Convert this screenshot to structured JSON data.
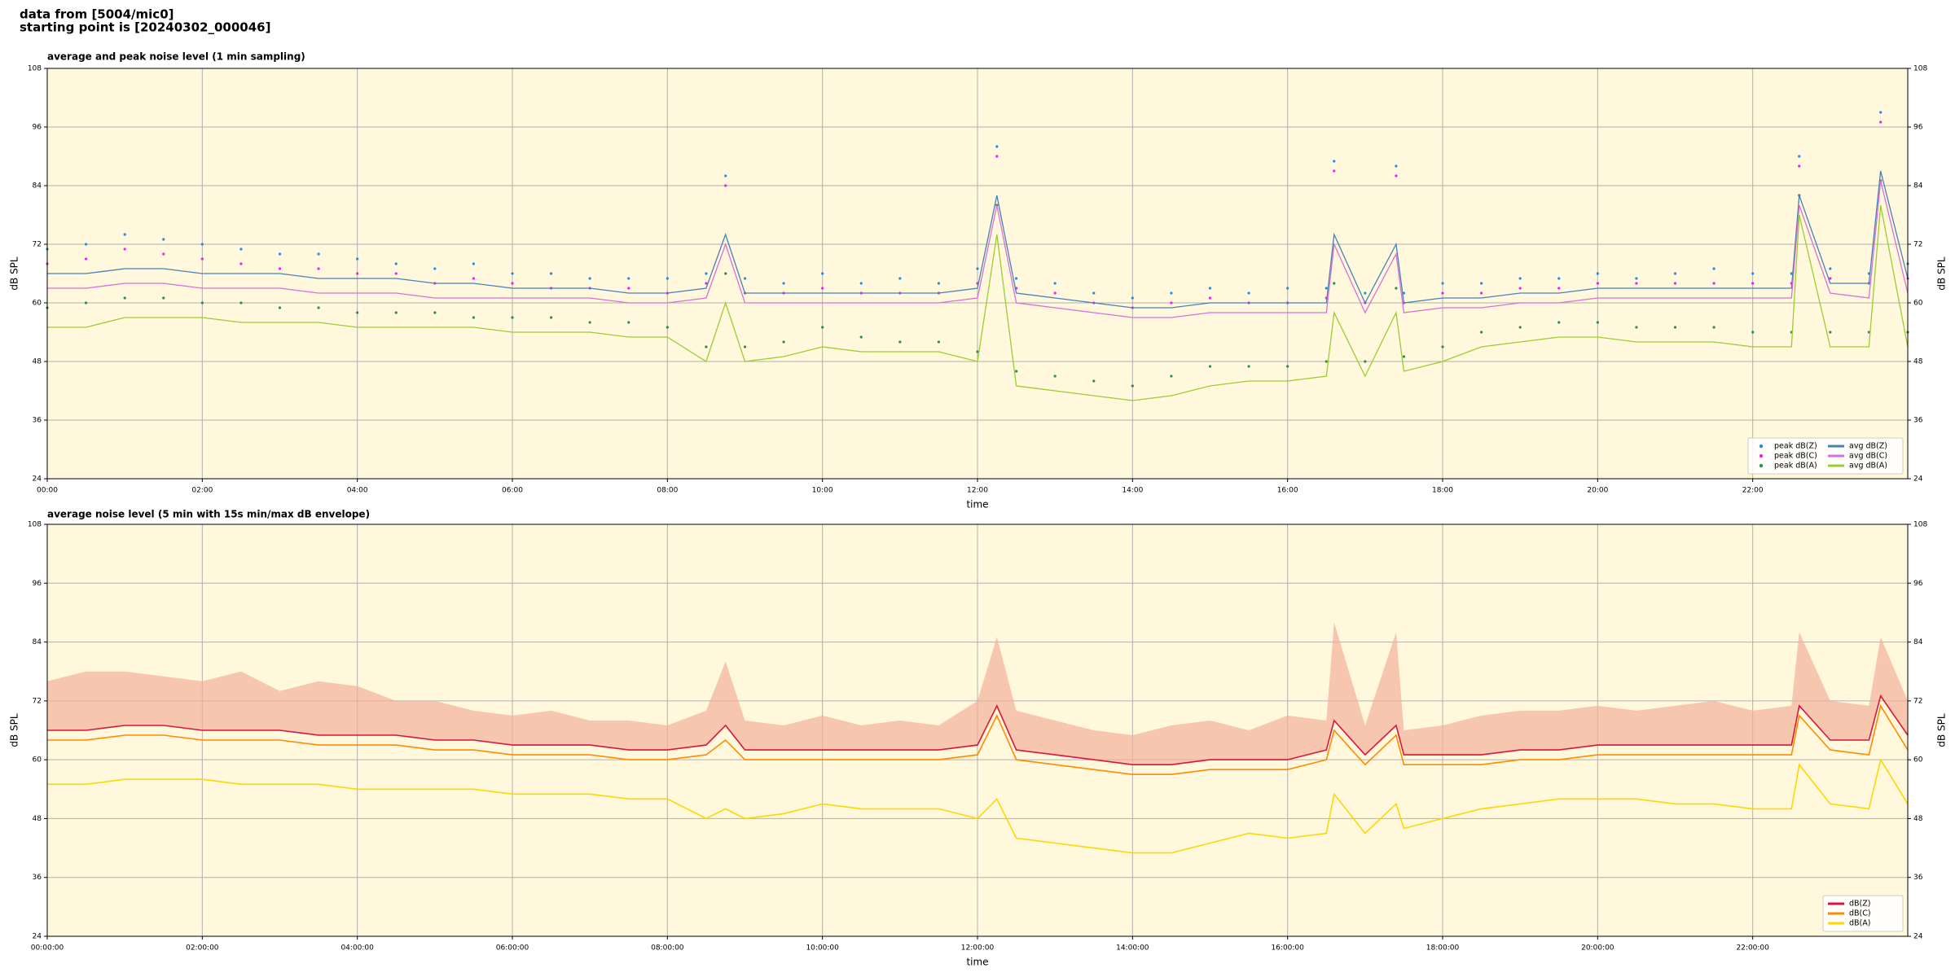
{
  "header": [
    "data from [5004/mic0]",
    "starting point is [20240302_000046]"
  ],
  "chart_data": [
    {
      "type": "line",
      "title": "average and peak noise level (1 min sampling)",
      "x_label": "time",
      "y_label": "dB SPL",
      "x": [
        0,
        0.5,
        1,
        1.5,
        2,
        2.5,
        3,
        3.5,
        4,
        4.5,
        5,
        5.5,
        6,
        6.5,
        7,
        7.5,
        8,
        8.5,
        8.75,
        9,
        9.5,
        10,
        10.5,
        11,
        11.5,
        12,
        12.25,
        12.5,
        13,
        13.5,
        14,
        14.5,
        15,
        15.5,
        16,
        16.5,
        16.6,
        17,
        17.4,
        17.5,
        18,
        18.5,
        19,
        19.5,
        20,
        20.5,
        21,
        21.5,
        22,
        22.5,
        22.6,
        23,
        23.5,
        23.65,
        24
      ],
      "xlim": [
        0,
        24
      ],
      "xticks": [
        {
          "value": 0,
          "label": "00:00"
        },
        {
          "value": 2,
          "label": "02:00"
        },
        {
          "value": 4,
          "label": "04:00"
        },
        {
          "value": 6,
          "label": "06:00"
        },
        {
          "value": 8,
          "label": "08:00"
        },
        {
          "value": 10,
          "label": "10:00"
        },
        {
          "value": 12,
          "label": "12:00"
        },
        {
          "value": 14,
          "label": "14:00"
        },
        {
          "value": 16,
          "label": "16:00"
        },
        {
          "value": 18,
          "label": "18:00"
        },
        {
          "value": 20,
          "label": "20:00"
        },
        {
          "value": 22,
          "label": "22:00"
        }
      ],
      "ylim": [
        24,
        108
      ],
      "yticks": [
        24,
        36,
        48,
        60,
        72,
        84,
        96,
        108
      ],
      "grid": true,
      "legend": "lower right",
      "series": [
        {
          "name": "peak dB(Z)",
          "type": "scatter",
          "color": "#1f8fe0",
          "values": [
            71,
            72,
            74,
            73,
            72,
            71,
            70,
            70,
            69,
            68,
            67,
            68,
            66,
            66,
            65,
            65,
            65,
            66,
            86,
            65,
            64,
            66,
            64,
            65,
            64,
            67,
            92,
            65,
            64,
            62,
            61,
            62,
            63,
            62,
            63,
            63,
            89,
            62,
            88,
            62,
            64,
            64,
            65,
            65,
            66,
            65,
            66,
            67,
            66,
            66,
            90,
            67,
            66,
            99,
            68
          ]
        },
        {
          "name": "peak dB(C)",
          "type": "scatter",
          "color": "#f01ff0",
          "values": [
            68,
            69,
            71,
            70,
            69,
            68,
            67,
            67,
            66,
            66,
            64,
            65,
            64,
            63,
            63,
            63,
            62,
            64,
            84,
            62,
            62,
            63,
            62,
            62,
            62,
            64,
            90,
            63,
            62,
            60,
            59,
            60,
            61,
            60,
            60,
            61,
            87,
            60,
            86,
            60,
            62,
            62,
            63,
            63,
            64,
            64,
            64,
            64,
            64,
            64,
            88,
            65,
            64,
            97,
            65
          ]
        },
        {
          "name": "peak dB(A)",
          "type": "scatter",
          "color": "#2e8b57",
          "values": [
            59,
            60,
            61,
            61,
            60,
            60,
            59,
            59,
            58,
            58,
            58,
            57,
            57,
            57,
            56,
            56,
            55,
            51,
            66,
            51,
            52,
            55,
            53,
            52,
            52,
            50,
            80,
            46,
            45,
            44,
            43,
            45,
            47,
            47,
            47,
            48,
            64,
            48,
            63,
            49,
            51,
            54,
            55,
            56,
            56,
            55,
            55,
            55,
            54,
            54,
            82,
            54,
            54,
            85,
            54
          ]
        },
        {
          "name": "avg dB(Z)",
          "type": "line",
          "color": "#4682b4",
          "values": [
            66,
            66,
            67,
            67,
            66,
            66,
            66,
            65,
            65,
            65,
            64,
            64,
            63,
            63,
            63,
            62,
            62,
            63,
            74,
            62,
            62,
            62,
            62,
            62,
            62,
            63,
            82,
            62,
            61,
            60,
            59,
            59,
            60,
            60,
            60,
            60,
            74,
            60,
            72,
            60,
            61,
            61,
            62,
            62,
            63,
            63,
            63,
            63,
            63,
            63,
            82,
            64,
            64,
            87,
            65
          ]
        },
        {
          "name": "avg dB(C)",
          "type": "line",
          "color": "#da70d6",
          "values": [
            63,
            63,
            64,
            64,
            63,
            63,
            63,
            62,
            62,
            62,
            61,
            61,
            61,
            61,
            61,
            60,
            60,
            61,
            72,
            60,
            60,
            60,
            60,
            60,
            60,
            61,
            80,
            60,
            59,
            58,
            57,
            57,
            58,
            58,
            58,
            58,
            72,
            58,
            70,
            58,
            59,
            59,
            60,
            60,
            61,
            61,
            61,
            61,
            61,
            61,
            80,
            62,
            61,
            85,
            62
          ]
        },
        {
          "name": "avg dB(A)",
          "type": "line",
          "color": "#9acd32",
          "values": [
            55,
            55,
            57,
            57,
            57,
            56,
            56,
            56,
            55,
            55,
            55,
            55,
            54,
            54,
            54,
            53,
            53,
            48,
            60,
            48,
            49,
            51,
            50,
            50,
            50,
            48,
            74,
            43,
            42,
            41,
            40,
            41,
            43,
            44,
            44,
            45,
            58,
            45,
            58,
            46,
            48,
            51,
            52,
            53,
            53,
            52,
            52,
            52,
            51,
            51,
            78,
            51,
            51,
            80,
            51
          ]
        }
      ]
    },
    {
      "type": "line",
      "title": "average noise level (5 min with 15s min/max dB envelope)",
      "x_label": "time",
      "y_label": "dB SPL",
      "x": [
        0,
        0.5,
        1,
        1.5,
        2,
        2.5,
        3,
        3.5,
        4,
        4.5,
        5,
        5.5,
        6,
        6.5,
        7,
        7.5,
        8,
        8.5,
        8.75,
        9,
        9.5,
        10,
        10.5,
        11,
        11.5,
        12,
        12.25,
        12.5,
        13,
        13.5,
        14,
        14.5,
        15,
        15.5,
        16,
        16.5,
        16.6,
        17,
        17.4,
        17.5,
        18,
        18.5,
        19,
        19.5,
        20,
        20.5,
        21,
        21.5,
        22,
        22.5,
        22.6,
        23,
        23.5,
        23.65,
        24
      ],
      "xlim": [
        0,
        24
      ],
      "xticks": [
        {
          "value": 0,
          "label": "00:00:00"
        },
        {
          "value": 2,
          "label": "02:00:00"
        },
        {
          "value": 4,
          "label": "04:00:00"
        },
        {
          "value": 6,
          "label": "06:00:00"
        },
        {
          "value": 8,
          "label": "08:00:00"
        },
        {
          "value": 10,
          "label": "10:00:00"
        },
        {
          "value": 12,
          "label": "12:00:00"
        },
        {
          "value": 14,
          "label": "14:00:00"
        },
        {
          "value": 16,
          "label": "16:00:00"
        },
        {
          "value": 18,
          "label": "18:00:00"
        },
        {
          "value": 20,
          "label": "20:00:00"
        },
        {
          "value": 22,
          "label": "22:00:00"
        }
      ],
      "ylim": [
        24,
        108
      ],
      "yticks": [
        24,
        36,
        48,
        60,
        72,
        84,
        96,
        108
      ],
      "grid": true,
      "legend": "lower right",
      "series": [
        {
          "name": "dB(Z)",
          "type": "line",
          "color": "#dc143c",
          "envelope_color": "#f4b09a",
          "values": [
            66,
            66,
            67,
            67,
            66,
            66,
            66,
            65,
            65,
            65,
            64,
            64,
            63,
            63,
            63,
            62,
            62,
            63,
            67,
            62,
            62,
            62,
            62,
            62,
            62,
            63,
            71,
            62,
            61,
            60,
            59,
            59,
            60,
            60,
            60,
            62,
            68,
            61,
            67,
            61,
            61,
            61,
            62,
            62,
            63,
            63,
            63,
            63,
            63,
            63,
            71,
            64,
            64,
            73,
            65
          ],
          "max": [
            76,
            78,
            78,
            77,
            76,
            78,
            74,
            76,
            75,
            72,
            72,
            70,
            69,
            70,
            68,
            68,
            67,
            70,
            80,
            68,
            67,
            69,
            67,
            68,
            67,
            72,
            85,
            70,
            68,
            66,
            65,
            67,
            68,
            66,
            69,
            68,
            88,
            67,
            86,
            66,
            67,
            69,
            70,
            70,
            71,
            70,
            71,
            72,
            70,
            71,
            86,
            72,
            71,
            85,
            72
          ]
        },
        {
          "name": "dB(C)",
          "type": "line",
          "color": "#ff8c00",
          "values": [
            64,
            64,
            65,
            65,
            64,
            64,
            64,
            63,
            63,
            63,
            62,
            62,
            61,
            61,
            61,
            60,
            60,
            61,
            64,
            60,
            60,
            60,
            60,
            60,
            60,
            61,
            69,
            60,
            59,
            58,
            57,
            57,
            58,
            58,
            58,
            60,
            66,
            59,
            65,
            59,
            59,
            59,
            60,
            60,
            61,
            61,
            61,
            61,
            61,
            61,
            69,
            62,
            61,
            71,
            62
          ]
        },
        {
          "name": "dB(A)",
          "type": "line",
          "color": "#ffd700",
          "values": [
            55,
            55,
            56,
            56,
            56,
            55,
            55,
            55,
            54,
            54,
            54,
            54,
            53,
            53,
            53,
            52,
            52,
            48,
            50,
            48,
            49,
            51,
            50,
            50,
            50,
            48,
            52,
            44,
            43,
            42,
            41,
            41,
            43,
            45,
            44,
            45,
            53,
            45,
            51,
            46,
            48,
            50,
            51,
            52,
            52,
            52,
            51,
            51,
            50,
            50,
            59,
            51,
            50,
            60,
            51
          ]
        }
      ]
    }
  ]
}
